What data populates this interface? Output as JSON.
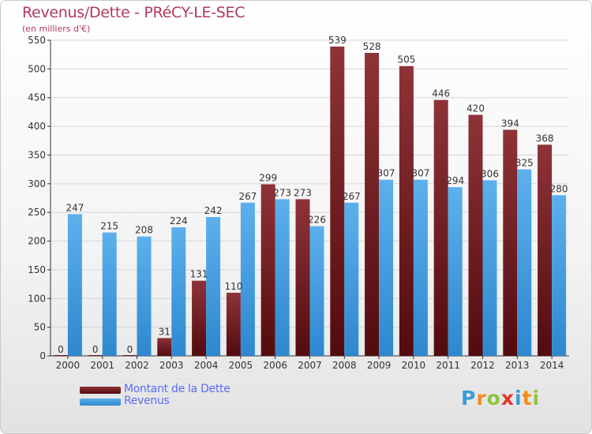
{
  "header": {
    "title": "Revenus/Dette - PRéCY-LE-SEC",
    "subtitle": "(en milliers d'€)"
  },
  "chart_data": {
    "type": "bar",
    "categories": [
      "2000",
      "2001",
      "2002",
      "2003",
      "2004",
      "2005",
      "2006",
      "2007",
      "2008",
      "2009",
      "2010",
      "2011",
      "2012",
      "2013",
      "2014"
    ],
    "series": [
      {
        "name": "Montant de la Dette",
        "color": "#7a1f24",
        "values": [
          0,
          0,
          0,
          31,
          131,
          110,
          299,
          273,
          539,
          528,
          505,
          446,
          420,
          394,
          368
        ]
      },
      {
        "name": "Revenus",
        "color": "#4ea6e6",
        "values": [
          247,
          215,
          208,
          224,
          242,
          267,
          273,
          226,
          267,
          307,
          307,
          294,
          306,
          325,
          280
        ]
      }
    ],
    "yticks": [
      0,
      50,
      100,
      150,
      200,
      250,
      300,
      350,
      400,
      450,
      500,
      550
    ],
    "ylim": [
      0,
      550
    ],
    "grid": true,
    "legend_position": "bottom-left"
  },
  "legend": {
    "items": [
      {
        "label": "Montant de la Dette",
        "color": "#7a1f24"
      },
      {
        "label": "Revenus",
        "color": "#4ea6e6"
      }
    ]
  },
  "brand": {
    "letters": [
      "P",
      "r",
      "o",
      "x",
      "i",
      "t",
      "i"
    ],
    "colors": [
      "#3a9ad9",
      "#f08c1c",
      "#8cc63f",
      "#e5352b",
      "#3a9ad9",
      "#f08c1c",
      "#8cc63f"
    ]
  }
}
